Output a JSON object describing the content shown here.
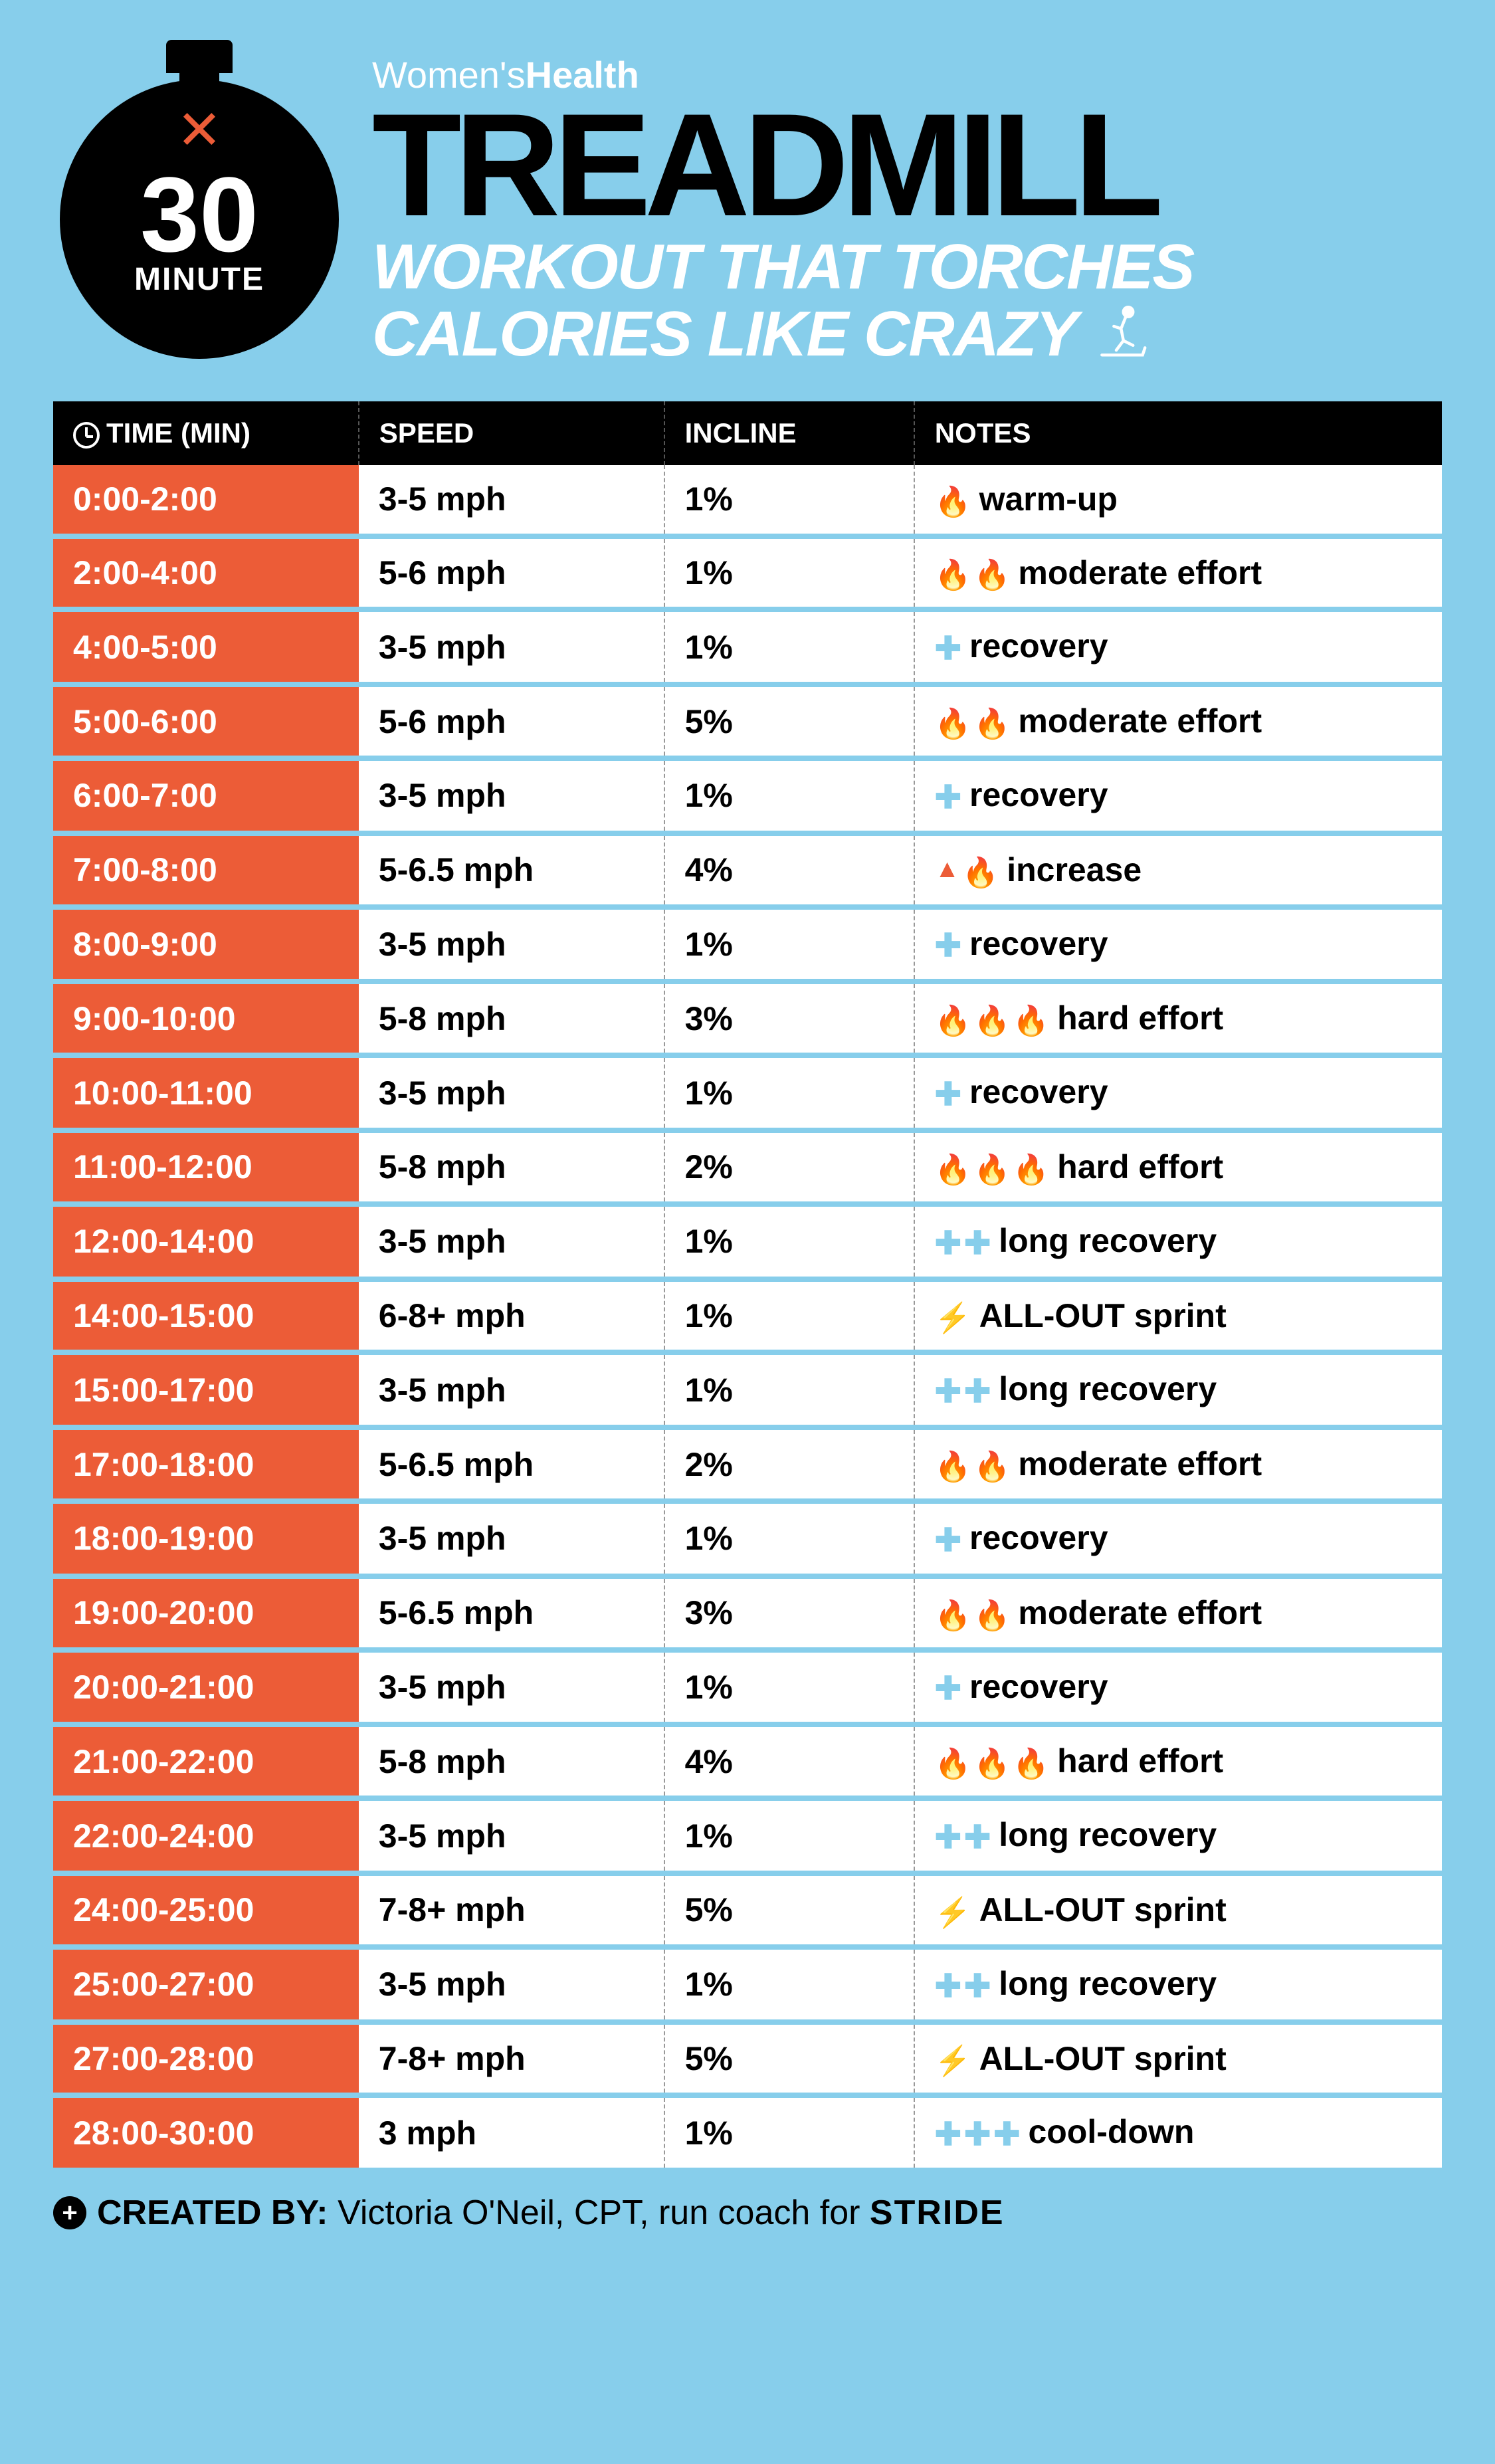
{
  "stopwatch": {
    "number": "30",
    "label": "MINUTE"
  },
  "brand": {
    "womens": "Women's",
    "health": "Health"
  },
  "title": "TREADMILL",
  "subtitle_line1": "WORKOUT THAT TORCHES",
  "subtitle_line2": "CALORIES LIKE CRAZY",
  "columns": {
    "time": "TIME (MIN)",
    "speed": "SPEED",
    "incline": "INCLINE",
    "notes": "NOTES"
  },
  "rows": [
    {
      "time": "0:00-2:00",
      "speed": "3-5 mph",
      "incline": "1%",
      "icons": [
        "flame"
      ],
      "note": "warm-up"
    },
    {
      "time": "2:00-4:00",
      "speed": "5-6 mph",
      "incline": "1%",
      "icons": [
        "flame",
        "flame"
      ],
      "note": "moderate effort"
    },
    {
      "time": "4:00-5:00",
      "speed": "3-5 mph",
      "incline": "1%",
      "icons": [
        "plus"
      ],
      "note": "recovery"
    },
    {
      "time": "5:00-6:00",
      "speed": "5-6 mph",
      "incline": "5%",
      "icons": [
        "flame",
        "flame"
      ],
      "note": "moderate effort"
    },
    {
      "time": "6:00-7:00",
      "speed": "3-5 mph",
      "incline": "1%",
      "icons": [
        "plus"
      ],
      "note": "recovery"
    },
    {
      "time": "7:00-8:00",
      "speed": "5-6.5 mph",
      "incline": "4%",
      "icons": [
        "up",
        "flame"
      ],
      "note": "increase"
    },
    {
      "time": "8:00-9:00",
      "speed": "3-5 mph",
      "incline": "1%",
      "icons": [
        "plus"
      ],
      "note": "recovery"
    },
    {
      "time": "9:00-10:00",
      "speed": "5-8 mph",
      "incline": "3%",
      "icons": [
        "flame",
        "flame",
        "flame"
      ],
      "note": "hard effort"
    },
    {
      "time": "10:00-11:00",
      "speed": "3-5 mph",
      "incline": "1%",
      "icons": [
        "plus"
      ],
      "note": "recovery"
    },
    {
      "time": "11:00-12:00",
      "speed": "5-8 mph",
      "incline": "2%",
      "icons": [
        "flame",
        "flame",
        "flame"
      ],
      "note": "hard effort"
    },
    {
      "time": "12:00-14:00",
      "speed": "3-5 mph",
      "incline": "1%",
      "icons": [
        "plus",
        "plus"
      ],
      "note": "long recovery"
    },
    {
      "time": "14:00-15:00",
      "speed": "6-8+ mph",
      "incline": "1%",
      "icons": [
        "bolt"
      ],
      "note": "ALL-OUT sprint"
    },
    {
      "time": "15:00-17:00",
      "speed": "3-5 mph",
      "incline": "1%",
      "icons": [
        "plus",
        "plus"
      ],
      "note": "long recovery"
    },
    {
      "time": "17:00-18:00",
      "speed": "5-6.5 mph",
      "incline": "2%",
      "icons": [
        "flame",
        "flame"
      ],
      "note": "moderate effort"
    },
    {
      "time": "18:00-19:00",
      "speed": "3-5 mph",
      "incline": "1%",
      "icons": [
        "plus"
      ],
      "note": "recovery"
    },
    {
      "time": "19:00-20:00",
      "speed": "5-6.5 mph",
      "incline": "3%",
      "icons": [
        "flame",
        "flame"
      ],
      "note": "moderate effort"
    },
    {
      "time": "20:00-21:00",
      "speed": "3-5 mph",
      "incline": "1%",
      "icons": [
        "plus"
      ],
      "note": "recovery"
    },
    {
      "time": "21:00-22:00",
      "speed": "5-8 mph",
      "incline": "4%",
      "icons": [
        "flame",
        "flame",
        "flame"
      ],
      "note": "hard effort"
    },
    {
      "time": "22:00-24:00",
      "speed": "3-5 mph",
      "incline": "1%",
      "icons": [
        "plus",
        "plus"
      ],
      "note": "long recovery"
    },
    {
      "time": "24:00-25:00",
      "speed": "7-8+ mph",
      "incline": "5%",
      "icons": [
        "bolt"
      ],
      "note": "ALL-OUT sprint"
    },
    {
      "time": "25:00-27:00",
      "speed": "3-5 mph",
      "incline": "1%",
      "icons": [
        "plus",
        "plus"
      ],
      "note": "long recovery"
    },
    {
      "time": "27:00-28:00",
      "speed": "7-8+ mph",
      "incline": "5%",
      "icons": [
        "bolt"
      ],
      "note": "ALL-OUT sprint"
    },
    {
      "time": "28:00-30:00",
      "speed": "3 mph",
      "incline": "1%",
      "icons": [
        "plus",
        "plus",
        "plus"
      ],
      "note": "cool-down"
    }
  ],
  "footer": {
    "created_label": "CREATED BY:",
    "author": "Victoria O'Neil, CPT, run coach for",
    "company": "STRIDE"
  },
  "colors": {
    "bg": "#87ceeb",
    "orange": "#ec5c37",
    "black": "#000000",
    "white": "#ffffff",
    "yellow": "#f5c518"
  }
}
